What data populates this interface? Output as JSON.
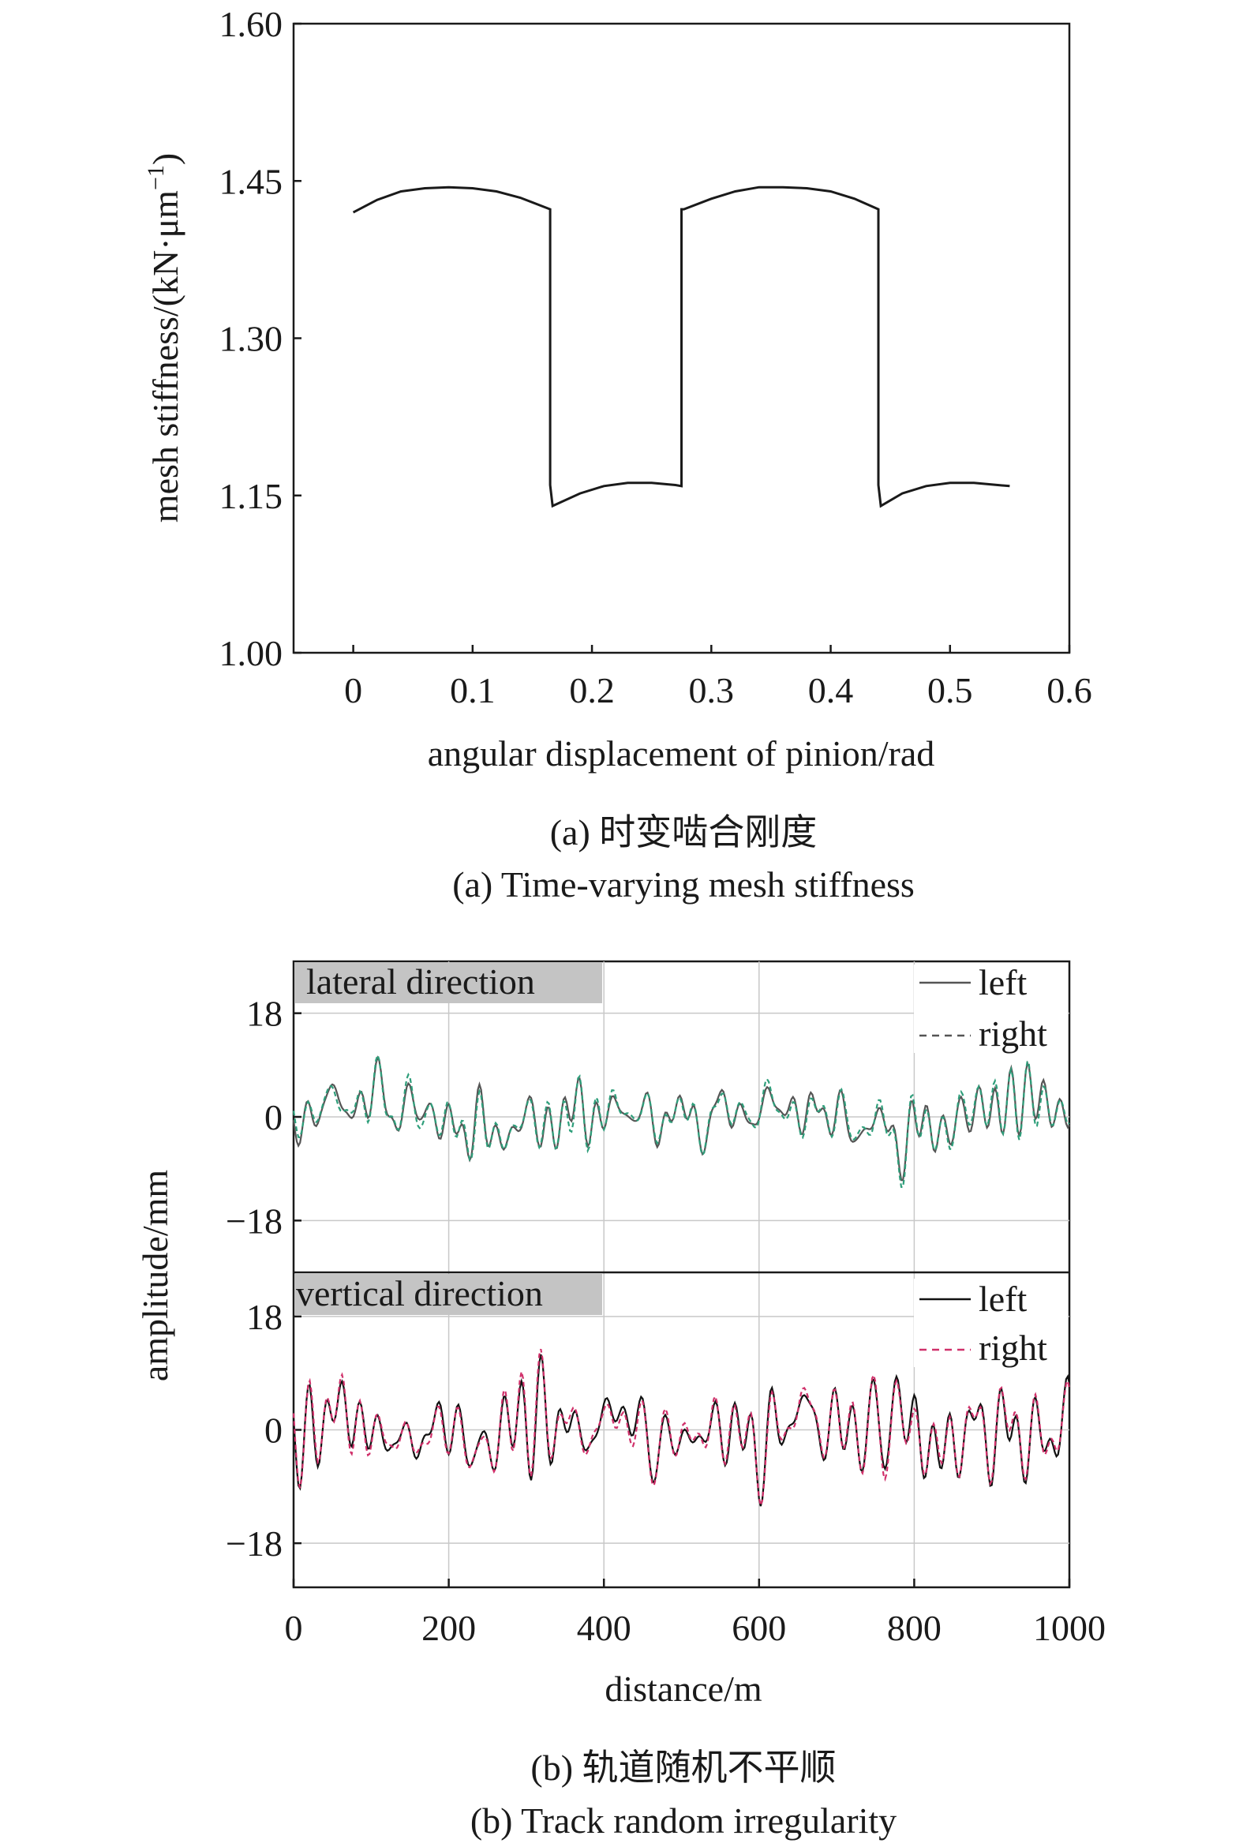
{
  "figure_a": {
    "caption_cn": "(a) 时变啮合刚度",
    "caption_en": "(a) Time-varying mesh stiffness"
  },
  "figure_b": {
    "caption_cn": "(b) 轨道随机不平顺",
    "caption_en": "(b) Track random irregularity"
  },
  "colors": {
    "line": "#1a1a1a",
    "grid": "#c8c8c8",
    "lateral_left": "#555555",
    "lateral_right_accent": "#2e9e7a",
    "lateral_right_accent2": "#3a4fbf",
    "vertical_left": "#111111",
    "vertical_right": "#d0306a",
    "panel_label_bg": "#c4c4c4"
  },
  "chart_data": [
    {
      "type": "line",
      "xlabel": "angular displacement of pinion/rad",
      "ylabel": "mesh stiffness/(kN·μm",
      "ylabel_sup": "−1",
      "ylabel_close": ")",
      "xlim": [
        -0.05,
        0.6
      ],
      "ylim": [
        1.0,
        1.6
      ],
      "xticks": [
        "0",
        "0.1",
        "0.2",
        "0.3",
        "0.4",
        "0.5",
        "0.6"
      ],
      "xtick_values": [
        0,
        0.1,
        0.2,
        0.3,
        0.4,
        0.5,
        0.6
      ],
      "yticks": [
        "1.00",
        "1.15",
        "1.30",
        "1.45",
        "1.60"
      ],
      "ytick_values": [
        1.0,
        1.15,
        1.3,
        1.45,
        1.6
      ],
      "grid": false,
      "series": [
        {
          "x": [
            0,
            0.02,
            0.04,
            0.06,
            0.08,
            0.1,
            0.12,
            0.14,
            0.165,
            0.165,
            0.167,
            0.19,
            0.21,
            0.23,
            0.25,
            0.27,
            0.275,
            0.275,
            0.277,
            0.3,
            0.32,
            0.34,
            0.36,
            0.38,
            0.4,
            0.42,
            0.44,
            0.44,
            0.442,
            0.46,
            0.48,
            0.5,
            0.52,
            0.54,
            0.55
          ],
          "y": [
            1.42,
            1.432,
            1.44,
            1.443,
            1.444,
            1.443,
            1.44,
            1.434,
            1.423,
            1.16,
            1.14,
            1.152,
            1.159,
            1.162,
            1.162,
            1.16,
            1.159,
            1.423,
            1.423,
            1.433,
            1.44,
            1.444,
            1.444,
            1.443,
            1.44,
            1.433,
            1.423,
            1.16,
            1.14,
            1.152,
            1.159,
            1.162,
            1.162,
            1.16,
            1.159
          ]
        }
      ]
    },
    {
      "type": "line",
      "panels": [
        {
          "label": "lateral direction",
          "ylim": [
            -27,
            27
          ],
          "yticks": [
            "18",
            "0",
            "−18"
          ],
          "ytick_values": [
            18,
            0,
            -18
          ],
          "legend": [
            "left",
            "right"
          ],
          "series": [
            {
              "name": "left",
              "style": "solid",
              "seed": 7,
              "amp": 5.0
            },
            {
              "name": "right",
              "style": "dashed",
              "seed": 7,
              "amp": 5.0,
              "offset_seed": 11
            }
          ]
        },
        {
          "label": "vertical direction",
          "ylim": [
            -25,
            25
          ],
          "yticks": [
            "18",
            "0",
            "−18"
          ],
          "ytick_values": [
            18,
            0,
            -18
          ],
          "legend": [
            "left",
            "right"
          ],
          "series": [
            {
              "name": "left",
              "style": "solid",
              "seed": 23,
              "amp": 5.5
            },
            {
              "name": "right",
              "style": "dashed",
              "seed": 23,
              "amp": 5.5,
              "offset_seed": 31
            }
          ]
        }
      ],
      "xlabel": "distance/m",
      "ylabel": "amplitude/mm",
      "xlim": [
        0,
        1000
      ],
      "xticks": [
        "0",
        "200",
        "400",
        "600",
        "800",
        "1000"
      ],
      "xtick_values": [
        0,
        200,
        400,
        600,
        800,
        1000
      ],
      "grid": true
    }
  ]
}
